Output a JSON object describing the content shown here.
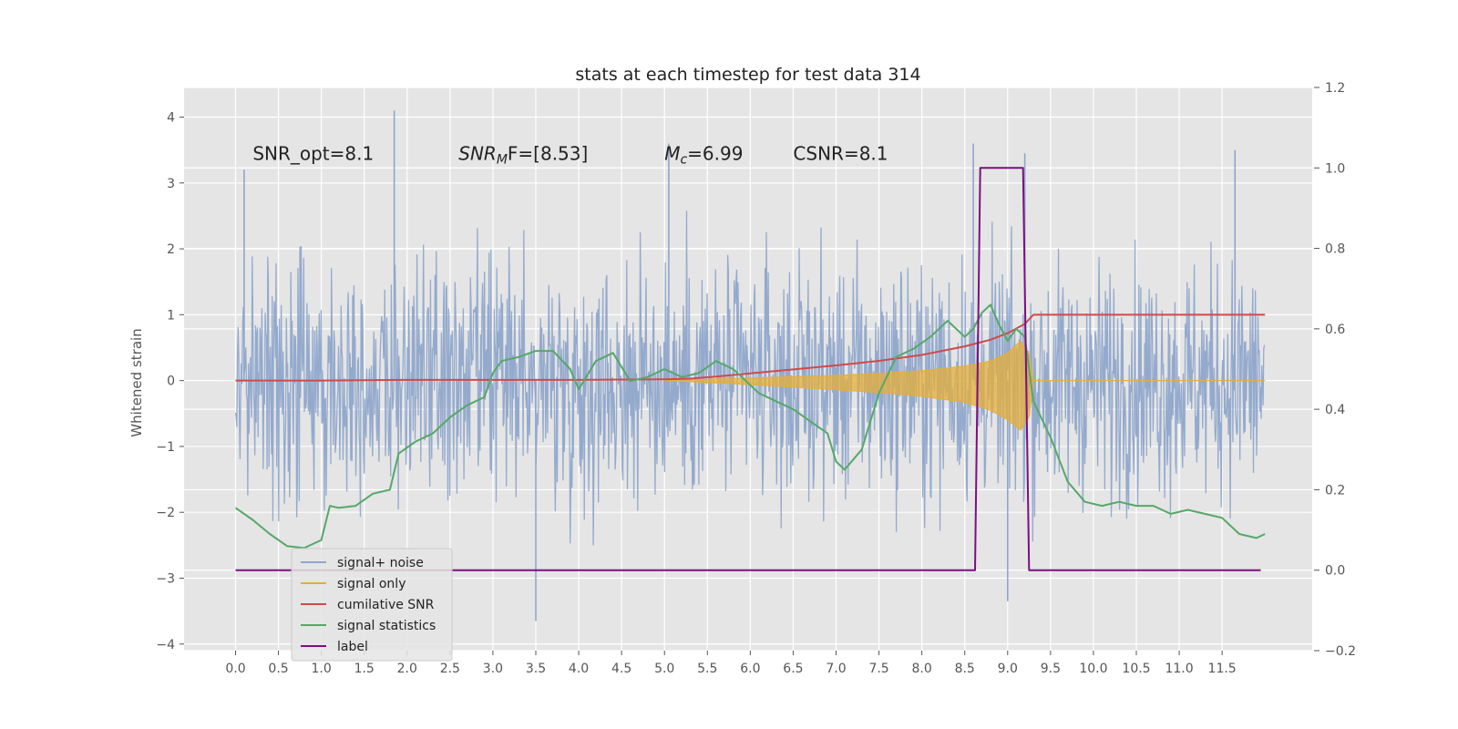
{
  "chart_data": {
    "type": "line",
    "title": "stats at each timestep for test data 314",
    "ylabel": "Whitened strain",
    "y2label": "",
    "xlabel": "",
    "xlim": [
      -0.6,
      12.55
    ],
    "ylim": [
      -4.1,
      4.45
    ],
    "y2lim": [
      -0.2,
      1.2
    ],
    "xticks": [
      "0.0",
      "0.5",
      "1.0",
      "1.5",
      "2.0",
      "2.5",
      "3.0",
      "3.5",
      "4.0",
      "4.5",
      "5.0",
      "5.5",
      "6.0",
      "6.5",
      "7.0",
      "7.5",
      "8.0",
      "8.5",
      "9.0",
      "9.5",
      "10.0",
      "10.5",
      "11.0",
      "11.5"
    ],
    "yticks": [
      "4",
      "3",
      "2",
      "1",
      "0",
      "−1",
      "−2",
      "−3",
      "−4"
    ],
    "y2ticks": [
      "1.2",
      "1.0",
      "0.8",
      "0.6",
      "0.4",
      "0.2",
      "0.0",
      "−0.2"
    ],
    "grid": true,
    "annotations": [
      {
        "text": "SNR_opt=8.1",
        "x": 0.2,
        "y": 3.35
      },
      {
        "text": "SNR_MF=[8.53]",
        "x": 2.6,
        "y": 3.35
      },
      {
        "text": "M_c=6.99",
        "x": 5.0,
        "y": 3.35
      },
      {
        "text": "CSNR=8.1",
        "x": 6.5,
        "y": 3.35
      }
    ],
    "legend_position": "lower-left",
    "series": [
      {
        "name": "signal+ noise",
        "axis": "left",
        "color": "#8fa6cb",
        "x_range": [
          0.0,
          12.0
        ],
        "envelope": {
          "typical": 2.0,
          "peak_high": 4.1,
          "peak_low": -3.7
        },
        "notable_points": [
          [
            0.1,
            3.2
          ],
          [
            1.85,
            4.1
          ],
          [
            5.05,
            3.6
          ],
          [
            8.6,
            3.6
          ],
          [
            9.2,
            3.45
          ],
          [
            11.65,
            3.5
          ],
          [
            3.5,
            -3.65
          ],
          [
            9.0,
            -3.35
          ]
        ]
      },
      {
        "name": "signal only",
        "axis": "left",
        "color": "#e5ae38",
        "x": [
          5.0,
          6.0,
          7.0,
          7.5,
          8.0,
          8.5,
          8.8,
          9.0,
          9.15,
          9.25,
          9.3
        ],
        "upper": [
          0.0,
          0.04,
          0.08,
          0.11,
          0.15,
          0.22,
          0.3,
          0.42,
          0.6,
          0.4,
          0.0
        ],
        "lower": [
          0.0,
          -0.06,
          -0.14,
          -0.18,
          -0.24,
          -0.33,
          -0.45,
          -0.6,
          -0.75,
          -0.55,
          0.0
        ]
      },
      {
        "name": "cumilative SNR",
        "axis": "left",
        "color": "#d04a4a",
        "x": [
          0.0,
          1.0,
          2.0,
          3.0,
          4.0,
          5.0,
          5.3,
          5.6,
          6.0,
          6.5,
          7.0,
          7.5,
          8.0,
          8.5,
          8.8,
          9.0,
          9.2,
          9.3,
          9.5,
          12.0
        ],
        "y": [
          0.0,
          0.0,
          0.01,
          0.01,
          0.01,
          0.02,
          0.03,
          0.06,
          0.11,
          0.17,
          0.23,
          0.3,
          0.39,
          0.52,
          0.62,
          0.72,
          0.86,
          1.0,
          1.0,
          1.0
        ]
      },
      {
        "name": "signal statistics",
        "axis": "right",
        "color": "#55a868",
        "x": [
          0.0,
          0.2,
          0.4,
          0.6,
          0.8,
          1.0,
          1.1,
          1.2,
          1.4,
          1.6,
          1.8,
          1.9,
          2.1,
          2.3,
          2.5,
          2.7,
          2.9,
          3.0,
          3.1,
          3.3,
          3.5,
          3.7,
          3.9,
          4.0,
          4.2,
          4.4,
          4.6,
          4.8,
          5.0,
          5.2,
          5.4,
          5.6,
          5.8,
          6.0,
          6.1,
          6.3,
          6.5,
          6.7,
          6.9,
          7.0,
          7.1,
          7.3,
          7.5,
          7.7,
          7.9,
          8.1,
          8.3,
          8.5,
          8.6,
          8.7,
          8.8,
          8.9,
          9.0,
          9.1,
          9.2,
          9.3,
          9.5,
          9.7,
          9.9,
          10.1,
          10.3,
          10.5,
          10.7,
          10.9,
          11.1,
          11.3,
          11.5,
          11.7,
          11.9,
          12.0
        ],
        "y": [
          0.155,
          0.125,
          0.09,
          0.06,
          0.055,
          0.075,
          0.16,
          0.155,
          0.16,
          0.19,
          0.2,
          0.29,
          0.32,
          0.34,
          0.38,
          0.41,
          0.43,
          0.49,
          0.52,
          0.53,
          0.545,
          0.545,
          0.5,
          0.45,
          0.52,
          0.54,
          0.47,
          0.48,
          0.5,
          0.48,
          0.49,
          0.52,
          0.5,
          0.46,
          0.44,
          0.42,
          0.4,
          0.37,
          0.34,
          0.27,
          0.25,
          0.3,
          0.44,
          0.53,
          0.55,
          0.58,
          0.62,
          0.58,
          0.6,
          0.64,
          0.66,
          0.61,
          0.57,
          0.6,
          0.58,
          0.42,
          0.33,
          0.22,
          0.17,
          0.16,
          0.17,
          0.16,
          0.16,
          0.14,
          0.15,
          0.14,
          0.13,
          0.09,
          0.08,
          0.09
        ]
      },
      {
        "name": "label",
        "axis": "right",
        "color": "#7b0f82",
        "x": [
          0.0,
          8.62,
          8.68,
          9.18,
          9.25,
          11.95
        ],
        "y": [
          0.0,
          0.0,
          1.0,
          1.0,
          0.0,
          0.0
        ]
      }
    ]
  }
}
